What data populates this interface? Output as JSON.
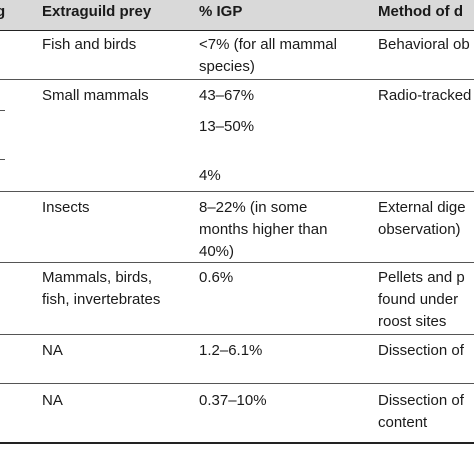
{
  "table": {
    "header": {
      "col1": "Extraguild prey",
      "col2": "% IGP",
      "col3": "Method of d"
    },
    "left_edge_fragment": "g",
    "rows": [
      {
        "prey": "Fish and birds",
        "igp": "<7% (for all mammal\nspecies)",
        "method": "Behavioral ob"
      },
      {
        "prey": "Small mammals",
        "igp": "43–67%",
        "method": "Radio-tracked"
      },
      {
        "prey": "",
        "igp": "13–50%",
        "method": ""
      },
      {
        "prey": "",
        "igp": "4%",
        "method": ""
      },
      {
        "prey": "Insects",
        "igp": "8–22% (in some\nmonths higher than\n40%)",
        "method": "External dige\nobservation)"
      },
      {
        "prey": "Mammals, birds,\nfish, invertebrates",
        "igp": "0.6%",
        "method": "Pellets and p\nfound under\nroost sites"
      },
      {
        "prey": "NA",
        "igp": "1.2–6.1%",
        "method": "Dissection of"
      },
      {
        "prey": "NA",
        "igp": "0.37–10%",
        "method": "Dissection of\ncontent"
      }
    ]
  }
}
